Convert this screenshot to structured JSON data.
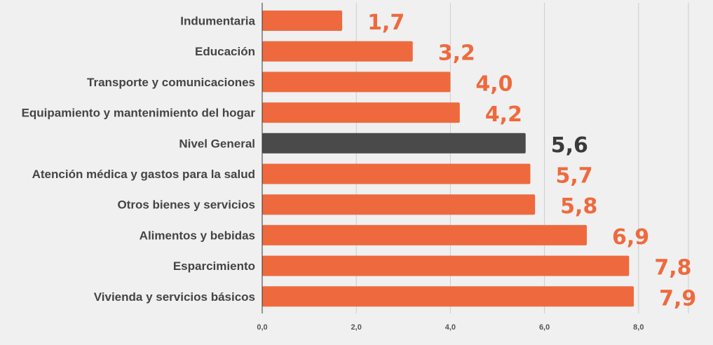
{
  "chart_data": {
    "type": "bar",
    "orientation": "horizontal",
    "categories": [
      "Indumentaria",
      "Educación",
      "Transporte y comunicaciones",
      "Equipamiento y mantenimiento del hogar",
      "Nivel General",
      "Atención médica y gastos para la salud",
      "Otros bienes y servicios",
      "Alimentos y bebidas",
      "Esparcimiento",
      "Vivienda y servicios básicos"
    ],
    "values": [
      1.7,
      3.2,
      4.0,
      4.2,
      5.6,
      5.7,
      5.8,
      6.9,
      7.8,
      7.9
    ],
    "data_labels": [
      "1,7",
      "3,2",
      "4,0",
      "4,2",
      "5,6",
      "5,7",
      "5,8",
      "6,9",
      "7,8",
      "7,9"
    ],
    "highlight_index": 4,
    "xlim": [
      0,
      9
    ],
    "ticks": [
      0,
      2,
      4,
      6,
      8
    ],
    "tick_labels": [
      "0,0",
      "2,0",
      "4,0",
      "6,0",
      "8,0"
    ],
    "grid": true,
    "title": "",
    "xlabel": "",
    "ylabel": "",
    "colors": {
      "bar": "#ee6a3e",
      "highlight_bar": "#4a4a4a",
      "label": "#ee6a3e",
      "highlight_label": "#3a3a3a",
      "grid": "#cccccc",
      "axis": "#333333",
      "background": "#f0f0f0"
    }
  }
}
